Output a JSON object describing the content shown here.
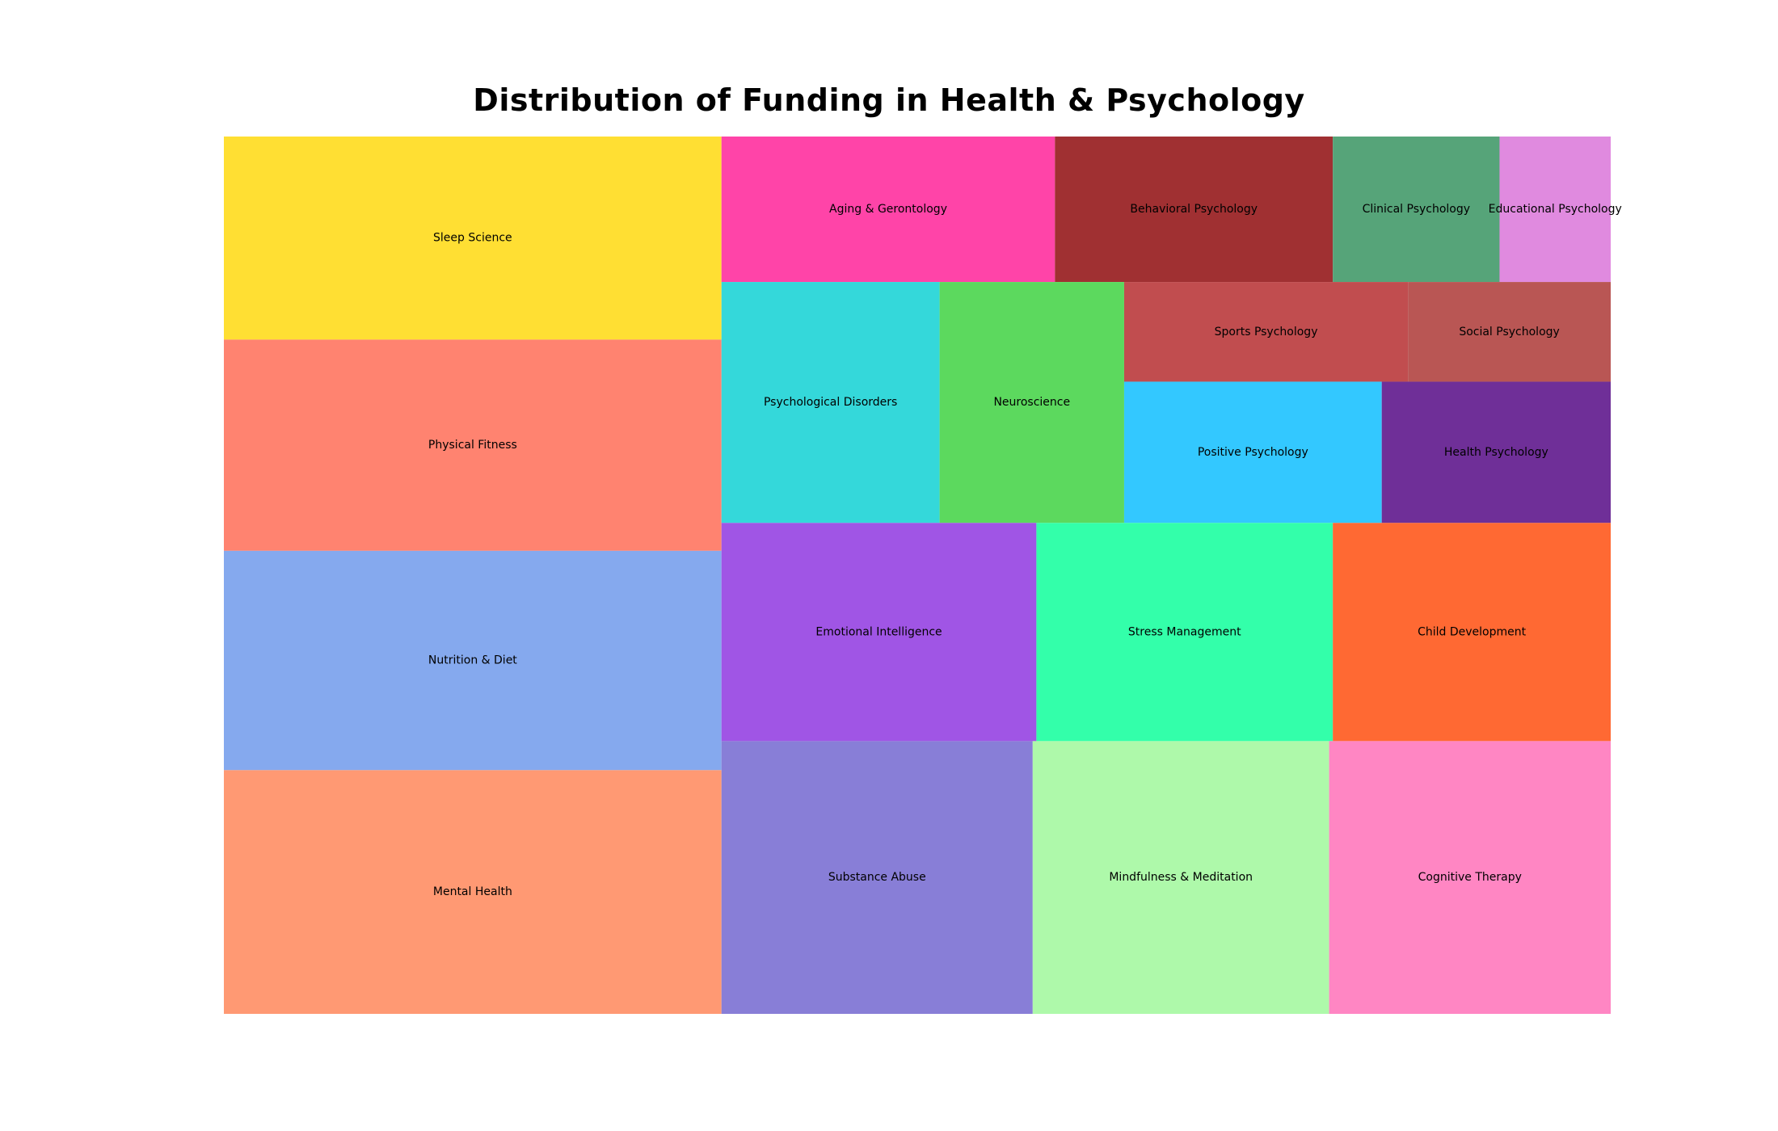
{
  "chart_data": {
    "type": "treemap",
    "title": "Distribution of Funding in Health & Psychology",
    "columns": [
      {
        "items": [
          {
            "label": "Sleep Science",
            "value": 25,
            "color": "#FFDF33"
          },
          {
            "label": "Physical Fitness",
            "value": 26,
            "color": "#FF8370"
          },
          {
            "label": "Nutrition & Diet",
            "value": 27,
            "color": "#85A9EE"
          },
          {
            "label": "Mental Health",
            "value": 30,
            "color": "#FF9973"
          }
        ]
      },
      {
        "rows": [
          {
            "items": [
              {
                "label": "Aging & Gerontology",
                "value": 12,
                "color": "#FF44A8"
              },
              {
                "label": "Behavioral Psychology",
                "value": 10,
                "color": "#A03032"
              },
              {
                "label": "Clinical Psychology",
                "value": 6,
                "color": "#56A479"
              },
              {
                "label": "Educational Psychology",
                "value": 4,
                "color": "#E08ADF"
              }
            ]
          },
          {
            "items": [
              {
                "label": "Psychological Disorders",
                "value": 13,
                "color": "#34D8DA"
              },
              {
                "label": "Neuroscience",
                "value": 11,
                "color": "#5CD95E"
              },
              {
                "label": "Sports Psychology",
                "value": 7,
                "color": "#C14D4F"
              },
              {
                "label": "Social Psychology",
                "value": 5,
                "color": "#B95654"
              },
              {
                "label": "Positive Psychology",
                "value": 9,
                "color": "#33C8FF"
              },
              {
                "label": "Health Psychology",
                "value": 8,
                "color": "#6F2F98"
              }
            ]
          },
          {
            "items": [
              {
                "label": "Emotional Intelligence",
                "value": 17,
                "color": "#A055E5"
              },
              {
                "label": "Stress Management",
                "value": 16,
                "color": "#33FFAA"
              },
              {
                "label": "Child Development",
                "value": 15,
                "color": "#FF6933"
              }
            ]
          },
          {
            "items": [
              {
                "label": "Substance Abuse",
                "value": 21,
                "color": "#887ED7"
              },
              {
                "label": "Mindfulness & Meditation",
                "value": 20,
                "color": "#AEF9AA"
              },
              {
                "label": "Cognitive Therapy",
                "value": 19,
                "color": "#FF86C3"
              }
            ]
          }
        ]
      }
    ]
  }
}
